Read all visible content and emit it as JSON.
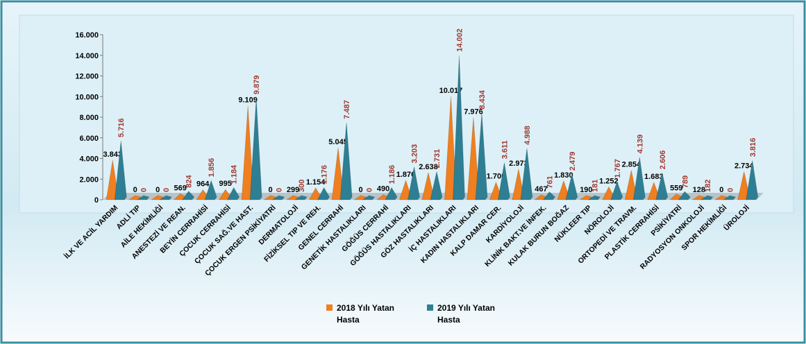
{
  "chart_data": {
    "type": "bar",
    "categories": [
      "İLK VE ACİL YARDIM",
      "ADLİ TIP",
      "AİLE HEKİMLİĞİ",
      "ANESTEZİ VE REAN.",
      "BEYİN CERRAHİSİ",
      "ÇOCUK CERRAHİSİ",
      "ÇOCUK SAĞ.VE HAST.",
      "ÇOCUK ERGEN PSİKİYATRİ",
      "DERMATOLOJİ",
      "FİZİKSEL TIP VE REH.",
      "GENEL CERRAHİ",
      "GENETİK HASTALIKLARI",
      "GÖĞÜS CERRAHİ",
      "GÖĞÜS HASTALIKLARI",
      "GÖZ HASTALIKLARI",
      "İÇ HASTALIKLARI",
      "KADIN HASTALIKLARI",
      "KALP DAMAR CER.",
      "KARDİYOLOJİ",
      "KLİNİK BAKT.VE İNFEK.",
      "KULAK BURUN BOĞAZ",
      "NÜKLEER TIP",
      "NÖROLOJİ",
      "ORTOPEDİ VE TRAVM.",
      "PLASTİK CERRAHİSİ",
      "PSİKİYATRİ",
      "RADYOSYON ONKOLOJİ",
      "SPOR HEKİMLİĞİ",
      "ÜROLOJİ"
    ],
    "series": [
      {
        "name": "2018 Yılı Yatan Hasta",
        "color": "#f07f1f",
        "values": [
          3843,
          0,
          0,
          569,
          964,
          995,
          9109,
          0,
          299,
          1154,
          5045,
          0,
          490,
          1876,
          2638,
          10017,
          7976,
          1700,
          2973,
          467,
          1830,
          190,
          1252,
          2854,
          1683,
          559,
          128,
          0,
          2734
        ],
        "value_labels": [
          "3.843",
          "0",
          "0",
          "569",
          "964",
          "995",
          "9.109",
          "0",
          "299",
          "1.154",
          "5.045",
          "0",
          "490",
          "1.876",
          "2.638",
          "10.017",
          "7.976",
          "1.700",
          "2.973",
          "467",
          "1.830",
          "190",
          "1.252",
          "2.854",
          "1.683",
          "559",
          "128",
          "0",
          "2.734"
        ]
      },
      {
        "name": "2019 Yılı Yatan Hasta",
        "color": "#2e7f93",
        "values": [
          5716,
          0,
          0,
          824,
          1856,
          1184,
          9879,
          0,
          300,
          1176,
          7487,
          0,
          1186,
          3203,
          2731,
          14002,
          8434,
          3611,
          4988,
          761,
          2479,
          181,
          1767,
          4139,
          2606,
          789,
          182,
          0,
          3816
        ],
        "value_labels": [
          "5.716",
          "0",
          "0",
          "824",
          "1.856",
          "1.184",
          "9.879",
          "0",
          "300",
          "1.176",
          "7.487",
          "0",
          "1.186",
          "3.203",
          "2.731",
          "14.002",
          "8.434",
          "3.611",
          "4.988",
          "761",
          "2.479",
          "181",
          "1.767",
          "4.139",
          "2.606",
          "789",
          "182",
          "0",
          "3.816"
        ]
      }
    ],
    "ylim": [
      0,
      16000
    ],
    "yticks": [
      0,
      {
        "value": 2000,
        "label": "2.000"
      },
      {
        "value": 4000,
        "label": "4.000"
      },
      {
        "value": 6000,
        "label": "6.000"
      },
      {
        "value": 8000,
        "label": "8.000"
      },
      {
        "value": 10000,
        "label": "10.000"
      },
      {
        "value": 12000,
        "label": "12.000"
      },
      {
        "value": 14000,
        "label": "14.000"
      },
      {
        "value": 16000,
        "label": "16.000"
      }
    ],
    "grid": false
  }
}
